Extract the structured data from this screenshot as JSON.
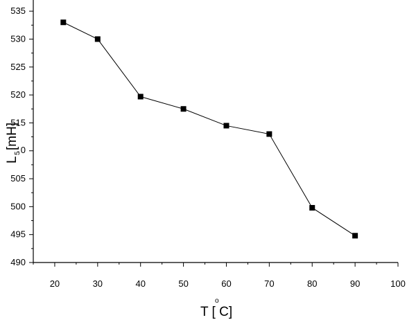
{
  "chart_data": {
    "type": "line",
    "x": [
      22,
      30,
      40,
      50,
      60,
      70,
      80,
      90
    ],
    "series": [
      {
        "values": [
          533,
          530,
          519.7,
          517.5,
          514.5,
          513,
          499.8,
          494.8
        ]
      }
    ],
    "xlim": [
      15,
      100
    ],
    "ylim": [
      490,
      537
    ],
    "x_ticks": [
      20,
      30,
      40,
      50,
      60,
      70,
      80,
      90,
      100
    ],
    "y_ticks": [
      490,
      495,
      500,
      505,
      510,
      515,
      520,
      525,
      530,
      535
    ],
    "x_tick_labels": [
      "20",
      "30",
      "40",
      "50",
      "60",
      "70",
      "80",
      "90",
      "100"
    ],
    "y_tick_labels": [
      "490",
      "495",
      "500",
      "505",
      "",
      "515",
      "520",
      "525",
      "530",
      "535"
    ],
    "y_tick_label_partial": "0",
    "xlabel": {
      "main": "T [ C]",
      "degree": "o"
    },
    "ylabel": {
      "main": "L",
      "subscript": "5",
      "unit": "[mH]",
      "mark": "-"
    },
    "grid": false,
    "marker": "square",
    "colors": {
      "line": "#000000",
      "marker": "#000000"
    }
  }
}
